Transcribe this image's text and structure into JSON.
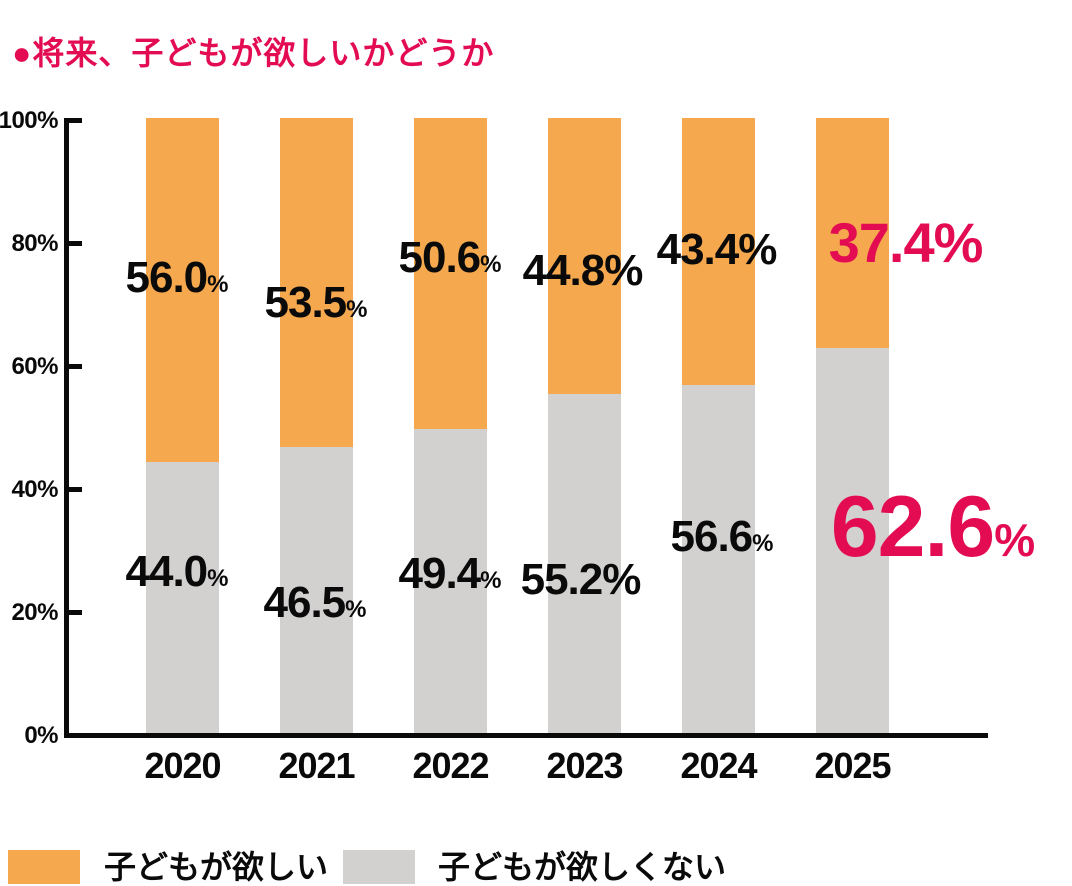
{
  "title": "●将来、子どもが欲しいかどうか",
  "colors": {
    "accent": "#E30C53",
    "want": "#F5A84D",
    "not_want": "#D3D0D0",
    "axis": "#0A0A0A",
    "text": "#0A0A0A"
  },
  "chart_data": {
    "type": "bar",
    "stacked": true,
    "title": "将来、子どもが欲しいかどうか",
    "categories": [
      "2020",
      "2021",
      "2022",
      "2023",
      "2024",
      "2025"
    ],
    "series": [
      {
        "name": "子どもが欲しい",
        "color": "#F5A84D",
        "values": [
          56.0,
          53.5,
          50.6,
          44.8,
          43.4,
          37.4
        ]
      },
      {
        "name": "子どもが欲しくない",
        "color": "#D3D0D0",
        "values": [
          44.0,
          46.5,
          49.4,
          55.2,
          56.6,
          62.6
        ]
      }
    ],
    "unit": "%",
    "yticks": [
      "0%",
      "20%",
      "40%",
      "60%",
      "80%",
      "100%"
    ],
    "ylim": [
      0,
      100
    ],
    "grid": false,
    "highlight_index": 5,
    "highlight_color": "#E30C53",
    "legend_position": "bottom"
  },
  "legend": {
    "items": [
      {
        "label": "子どもが欲しい",
        "color": "#F5A84D"
      },
      {
        "label": "子どもが欲しくない",
        "color": "#D3D0D0"
      }
    ]
  }
}
